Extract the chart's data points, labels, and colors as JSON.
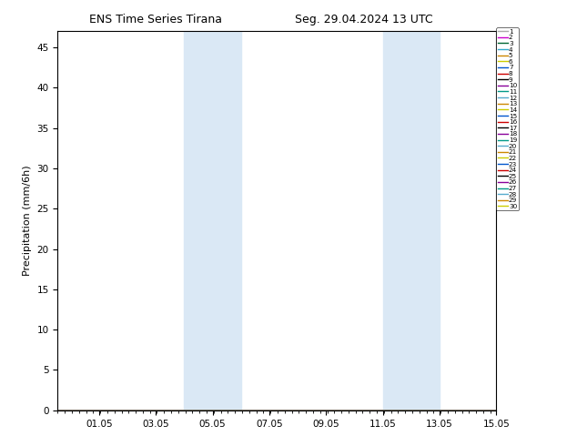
{
  "title_left": "ENS Time Series Tirana",
  "title_right": "Seg. 29.04.2024 13 UTC",
  "ylabel": "Precipitation (mm/6h)",
  "ylim": [
    0,
    47
  ],
  "yticks": [
    0,
    5,
    10,
    15,
    20,
    25,
    30,
    35,
    40,
    45
  ],
  "xtick_labels": [
    "01.05",
    "03.05",
    "05.05",
    "07.05",
    "09.05",
    "11.05",
    "13.05",
    "15.05"
  ],
  "shade_color": "#dae8f5",
  "n_members": 30,
  "member_colors": [
    "#aaaaaa",
    "#cc00cc",
    "#006633",
    "#33aacc",
    "#ff9900",
    "#cccc00",
    "#0055cc",
    "#cc0000",
    "#000000",
    "#880099",
    "#009988",
    "#55aacc",
    "#cc8800",
    "#cccc00",
    "#0055cc",
    "#cc0000",
    "#000000",
    "#880099",
    "#009988",
    "#55aacc",
    "#cc8800",
    "#cccc00",
    "#0055cc",
    "#cc0000",
    "#000000",
    "#880099",
    "#009988",
    "#55aacc",
    "#cc8800",
    "#cccc00"
  ],
  "background_color": "#ffffff",
  "figure_width": 6.34,
  "figure_height": 4.9,
  "dpi": 100
}
